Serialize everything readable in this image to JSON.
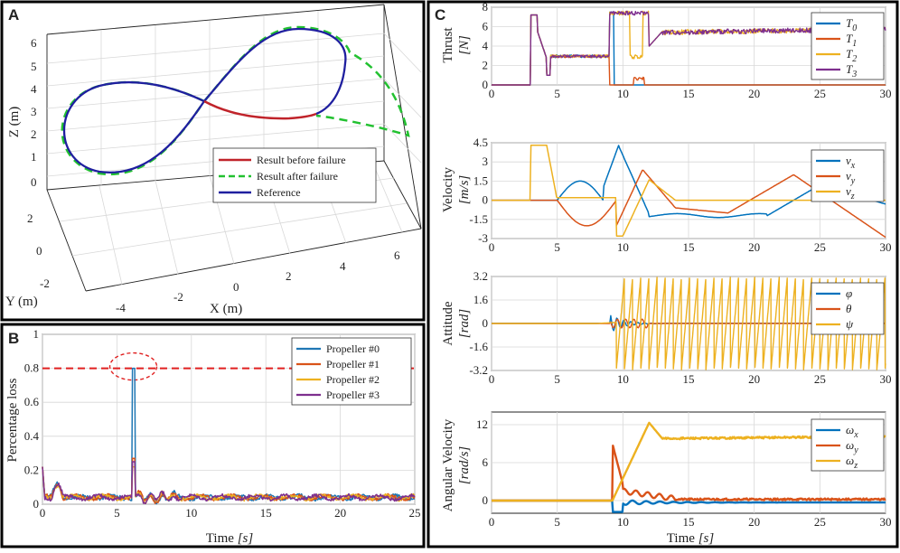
{
  "panels": {
    "A": {
      "letter": "A",
      "chart_data": {
        "type": "line3d",
        "title": "",
        "xlabel": "X (m)",
        "ylabel": "Y (m)",
        "zlabel": "Z (m)",
        "x_ticks": [
          "-4",
          "-2",
          "0",
          "2",
          "4",
          "6"
        ],
        "y_ticks": [
          "-2",
          "0",
          "2"
        ],
        "z_ticks": [
          "0",
          "1",
          "2",
          "3",
          "4",
          "5",
          "6"
        ],
        "legend": [
          "Result before failure",
          "Result after failure",
          "Reference"
        ],
        "colors": {
          "before": "#c0232a",
          "after": "#22c130",
          "reference": "#1f1f9f"
        }
      }
    },
    "B": {
      "letter": "B",
      "chart_data": {
        "type": "line",
        "xlabel_text": "Time ",
        "xlabel_unit": "[s]",
        "ylabel": "Percentage loss",
        "xlim": [
          0,
          25
        ],
        "ylim": [
          0,
          1
        ],
        "x_ticks": [
          "0",
          "5",
          "10",
          "15",
          "20",
          "25"
        ],
        "y_ticks": [
          "0",
          "0.2",
          "0.4",
          "0.6",
          "0.8",
          "1"
        ],
        "threshold": 0.8,
        "series": [
          {
            "name": "Propeller #0",
            "color": "#1f77b4",
            "peak": 0.8
          },
          {
            "name": "Propeller #1",
            "color": "#d95319",
            "peak": 0.27
          },
          {
            "name": "Propeller #2",
            "color": "#edb120",
            "peak": 0.22
          },
          {
            "name": "Propeller #3",
            "color": "#7e2f8e",
            "peak": 0.25
          }
        ]
      }
    },
    "C": {
      "letter": "C",
      "xlabel_text": "Time ",
      "xlabel_unit": "[s]",
      "x_ticks": [
        "0",
        "5",
        "10",
        "15",
        "20",
        "25",
        "30"
      ],
      "thrust": {
        "ylabel": "Thrust",
        "yunit": "[N]",
        "ylim": [
          0,
          8
        ],
        "y_ticks": [
          "0",
          "2",
          "4",
          "6",
          "8"
        ],
        "legend": [
          {
            "base": "T",
            "sub": "0",
            "color": "#0072bd"
          },
          {
            "base": "T",
            "sub": "1",
            "color": "#d95319"
          },
          {
            "base": "T",
            "sub": "2",
            "color": "#edb120"
          },
          {
            "base": "T",
            "sub": "3",
            "color": "#7e2f8e"
          }
        ]
      },
      "velocity": {
        "ylabel": "Velocity",
        "yunit": "[m/s]",
        "ylim": [
          -3,
          4.5
        ],
        "y_ticks": [
          "-3",
          "-1.5",
          "0",
          "1.5",
          "3",
          "4.5"
        ],
        "legend": [
          {
            "base": "v",
            "sub": "x",
            "color": "#0072bd"
          },
          {
            "base": "v",
            "sub": "y",
            "color": "#d95319"
          },
          {
            "base": "v",
            "sub": "z",
            "color": "#edb120"
          }
        ]
      },
      "attitude": {
        "ylabel": "Attitude",
        "yunit": "[rad]",
        "ylim": [
          -3.2,
          3.2
        ],
        "y_ticks": [
          "-3.2",
          "-1.6",
          "0",
          "1.6",
          "3.2"
        ],
        "legend": [
          {
            "base": "φ",
            "sub": "",
            "color": "#0072bd"
          },
          {
            "base": "θ",
            "sub": "",
            "color": "#d95319"
          },
          {
            "base": "ψ",
            "sub": "",
            "color": "#edb120"
          }
        ]
      },
      "angular": {
        "ylabel": "Angular Velocity",
        "yunit": "[rad/s]",
        "ylim": [
          -2,
          14
        ],
        "y_ticks": [
          "0",
          "6",
          "12"
        ],
        "legend": [
          {
            "base": "ω",
            "sub": "x",
            "color": "#0072bd"
          },
          {
            "base": "ω",
            "sub": "y",
            "color": "#d95319"
          },
          {
            "base": "ω",
            "sub": "z",
            "color": "#edb120"
          }
        ]
      }
    }
  }
}
